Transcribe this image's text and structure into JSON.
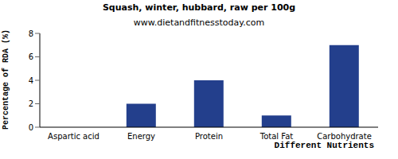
{
  "chart_data": {
    "type": "bar",
    "title": "Squash, winter, hubbard, raw per 100g",
    "subtitle": "www.dietandfitnesstoday.com",
    "x_label": "Different Nutrients",
    "y_label": "Percentage of RDA (%)",
    "categories": [
      "Aspartic acid",
      "Energy",
      "Protein",
      "Total Fat",
      "Carbohydrate"
    ],
    "values": [
      0,
      2,
      4,
      1,
      7
    ],
    "color": "#233f8c",
    "ylim": [
      0,
      8
    ],
    "yticks": [
      0,
      2,
      4,
      6,
      8
    ],
    "grid": false
  }
}
